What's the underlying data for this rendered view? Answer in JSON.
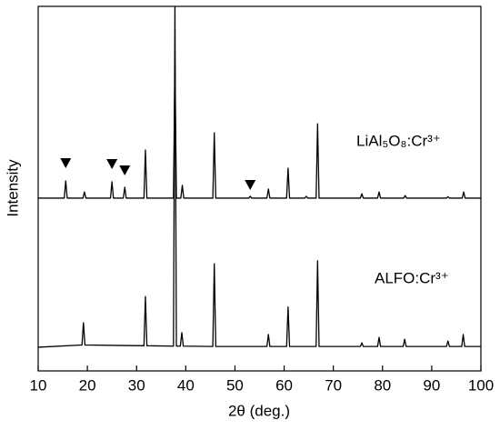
{
  "chart_data": {
    "type": "line",
    "xlabel": "2θ (deg.)",
    "ylabel": "Intensity",
    "xlim": [
      10,
      100
    ],
    "xticks": [
      10,
      20,
      30,
      40,
      50,
      60,
      70,
      80,
      90,
      100
    ],
    "ylim": [
      0,
      100
    ],
    "series": [
      {
        "name": "LiAl₅O₈:Cr³⁺",
        "color": "#000000",
        "x": [
          10,
          15.3,
          15.6,
          15.9,
          19.1,
          19.4,
          19.7,
          24.7,
          25,
          25.3,
          27.3,
          27.6,
          27.9,
          31.5,
          31.8,
          32.1,
          37.5,
          37.8,
          38.1,
          39,
          39.3,
          39.6,
          45.5,
          45.8,
          46.1,
          52.8,
          53.1,
          53.4,
          56.5,
          56.8,
          57.1,
          60.5,
          60.8,
          61.1,
          64.2,
          64.5,
          64.8,
          66.5,
          66.8,
          67.1,
          75.5,
          75.8,
          76.1,
          79,
          79.3,
          79.6,
          84.3,
          84.6,
          84.9,
          93,
          93.3,
          93.6,
          96.2,
          96.5,
          96.8,
          100
        ],
        "values": [
          47.4,
          47.4,
          52.1,
          47.4,
          47.4,
          49.1,
          47.4,
          47.4,
          51.9,
          47.4,
          47.4,
          50.4,
          47.4,
          47.4,
          60.6,
          47.4,
          47.4,
          84.5,
          47.4,
          47.4,
          50.9,
          47.4,
          47.4,
          65.3,
          47.4,
          47.4,
          47.9,
          47.4,
          47.4,
          49.9,
          47.4,
          47.4,
          55.6,
          47.4,
          47.4,
          47.9,
          47.4,
          47.4,
          67.8,
          47.4,
          47.4,
          48.6,
          47.4,
          47.4,
          49.1,
          47.4,
          47.4,
          48.1,
          47.4,
          47.4,
          47.8,
          47.4,
          47.4,
          49.1,
          47.4,
          47.4
        ]
      },
      {
        "name": "ALFO:Cr³⁺",
        "color": "#000000",
        "x": [
          10,
          18.9,
          19.2,
          19.5,
          31.5,
          31.8,
          32.1,
          37.5,
          37.8,
          38.1,
          38.9,
          39.2,
          39.5,
          45.5,
          45.8,
          46.1,
          56.5,
          56.8,
          57.1,
          60.5,
          60.8,
          61.1,
          66.5,
          66.8,
          67.1,
          75.5,
          75.8,
          76.1,
          79,
          79.3,
          79.6,
          84.2,
          84.5,
          84.8,
          93,
          93.3,
          93.6,
          96.1,
          96.4,
          96.7,
          100
        ],
        "values": [
          6.5,
          7.1,
          13.2,
          7.1,
          6.9,
          20.4,
          6.9,
          6.8,
          100,
          6.8,
          6.8,
          10.5,
          6.8,
          6.7,
          29.4,
          6.7,
          6.7,
          10,
          6.7,
          6.7,
          17.5,
          6.7,
          6.7,
          30.2,
          6.7,
          6.7,
          7.7,
          6.7,
          6.7,
          9.2,
          6.7,
          6.7,
          8.7,
          6.7,
          6.7,
          8.2,
          6.7,
          6.7,
          10,
          6.7,
          6.7
        ]
      }
    ],
    "markers_x": [
      15.6,
      25,
      27.6,
      53.1
    ]
  }
}
